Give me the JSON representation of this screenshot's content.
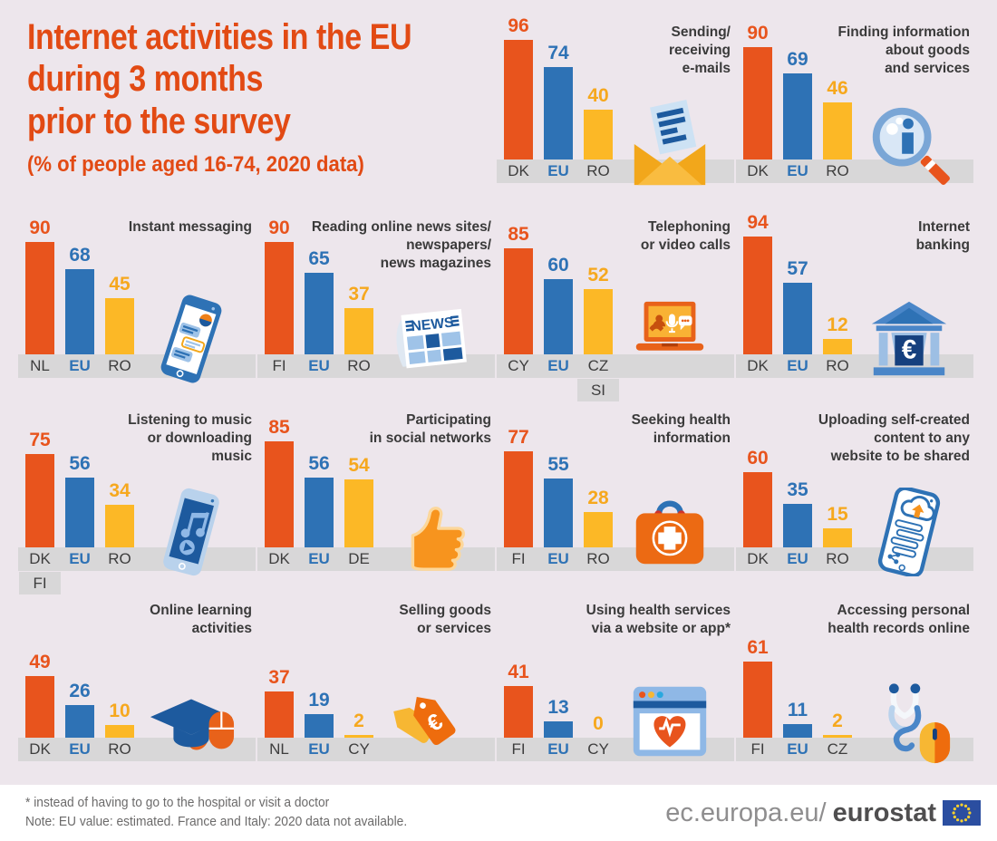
{
  "header": {
    "title": "Internet activities in the EU\nduring 3 months\nprior to the survey",
    "subtitle": "(% of people aged 16-74, 2020 data)"
  },
  "colors": {
    "background": "#ede6ec",
    "title_accent": "#e24a14",
    "bar_orange": "#e8541d",
    "bar_blue": "#2e72b5",
    "bar_yellow": "#fcb826",
    "yellow_value_label": "#f6a81e",
    "axis_strip_gray": "#d8d7d8",
    "chart_title_text": "#3a3a3a",
    "eu_flag_blue": "#2b4ea0",
    "eu_flag_stars": "#f8d12e"
  },
  "chart_data": [
    {
      "type": "bar",
      "title": "Sending/\nreceiving\ne-mails",
      "icon": "email-icon",
      "ylim": [
        0,
        100
      ],
      "bars": [
        {
          "label": "DK",
          "value": 96,
          "color": "orange"
        },
        {
          "label": "EU",
          "value": 74,
          "color": "blue"
        },
        {
          "label": "RO",
          "value": 40,
          "color": "yellow"
        }
      ]
    },
    {
      "type": "bar",
      "title": "Finding information\nabout goods\nand services",
      "icon": "magnifier-info-icon",
      "ylim": [
        0,
        100
      ],
      "bars": [
        {
          "label": "DK",
          "value": 90,
          "color": "orange"
        },
        {
          "label": "EU",
          "value": 69,
          "color": "blue"
        },
        {
          "label": "RO",
          "value": 46,
          "color": "yellow"
        }
      ]
    },
    {
      "type": "bar",
      "title": "Instant messaging",
      "icon": "smartphone-chat-icon",
      "ylim": [
        0,
        100
      ],
      "bars": [
        {
          "label": "NL",
          "value": 90,
          "color": "orange"
        },
        {
          "label": "EU",
          "value": 68,
          "color": "blue"
        },
        {
          "label": "RO",
          "value": 45,
          "color": "yellow"
        }
      ]
    },
    {
      "type": "bar",
      "title": "Reading online news sites/\nnewspapers/\nnews magazines",
      "icon": "newspaper-icon",
      "ylim": [
        0,
        100
      ],
      "bars": [
        {
          "label": "FI",
          "value": 90,
          "color": "orange"
        },
        {
          "label": "EU",
          "value": 65,
          "color": "blue"
        },
        {
          "label": "RO",
          "value": 37,
          "color": "yellow"
        }
      ]
    },
    {
      "type": "bar",
      "title": "Telephoning\nor video calls",
      "icon": "laptop-call-icon",
      "ylim": [
        0,
        100
      ],
      "bars": [
        {
          "label": "CY",
          "value": 85,
          "color": "orange"
        },
        {
          "label": "EU",
          "value": 60,
          "color": "blue"
        },
        {
          "label": "CZ",
          "value": 52,
          "color": "yellow",
          "sub": "SI"
        }
      ]
    },
    {
      "type": "bar",
      "title": "Internet\nbanking",
      "icon": "bank-icon",
      "ylim": [
        0,
        100
      ],
      "bars": [
        {
          "label": "DK",
          "value": 94,
          "color": "orange"
        },
        {
          "label": "EU",
          "value": 57,
          "color": "blue"
        },
        {
          "label": "RO",
          "value": 12,
          "color": "yellow"
        }
      ]
    },
    {
      "type": "bar",
      "title": "Listening to music\nor downloading\nmusic",
      "icon": "smartphone-music-icon",
      "ylim": [
        0,
        100
      ],
      "bars": [
        {
          "label": "DK",
          "value": 75,
          "color": "orange",
          "sub": "FI"
        },
        {
          "label": "EU",
          "value": 56,
          "color": "blue"
        },
        {
          "label": "RO",
          "value": 34,
          "color": "yellow"
        }
      ]
    },
    {
      "type": "bar",
      "title": "Participating\nin social networks",
      "icon": "thumbs-up-icon",
      "ylim": [
        0,
        100
      ],
      "bars": [
        {
          "label": "DK",
          "value": 85,
          "color": "orange"
        },
        {
          "label": "EU",
          "value": 56,
          "color": "blue"
        },
        {
          "label": "DE",
          "value": 54,
          "color": "yellow"
        }
      ]
    },
    {
      "type": "bar",
      "title": "Seeking health\ninformation",
      "icon": "first-aid-kit-icon",
      "ylim": [
        0,
        100
      ],
      "bars": [
        {
          "label": "FI",
          "value": 77,
          "color": "orange"
        },
        {
          "label": "EU",
          "value": 55,
          "color": "blue"
        },
        {
          "label": "RO",
          "value": 28,
          "color": "yellow"
        }
      ]
    },
    {
      "type": "bar",
      "title": "Uploading self-created\ncontent to any\nwebsite to be shared",
      "icon": "smartphone-upload-icon",
      "ylim": [
        0,
        100
      ],
      "bars": [
        {
          "label": "DK",
          "value": 60,
          "color": "orange"
        },
        {
          "label": "EU",
          "value": 35,
          "color": "blue"
        },
        {
          "label": "RO",
          "value": 15,
          "color": "yellow"
        }
      ]
    },
    {
      "type": "bar",
      "title": "Online learning\nactivities",
      "icon": "graduation-cap-mouse-icon",
      "ylim": [
        0,
        100
      ],
      "bars": [
        {
          "label": "DK",
          "value": 49,
          "color": "orange"
        },
        {
          "label": "EU",
          "value": 26,
          "color": "blue"
        },
        {
          "label": "RO",
          "value": 10,
          "color": "yellow"
        }
      ]
    },
    {
      "type": "bar",
      "title": "Selling goods\nor services",
      "icon": "price-tags-icon",
      "ylim": [
        0,
        100
      ],
      "bars": [
        {
          "label": "NL",
          "value": 37,
          "color": "orange"
        },
        {
          "label": "EU",
          "value": 19,
          "color": "blue"
        },
        {
          "label": "CY",
          "value": 2,
          "color": "yellow"
        }
      ]
    },
    {
      "type": "bar",
      "title": "Using health services\nvia a website or app*",
      "icon": "browser-heart-icon",
      "ylim": [
        0,
        100
      ],
      "bars": [
        {
          "label": "FI",
          "value": 41,
          "color": "orange"
        },
        {
          "label": "EU",
          "value": 13,
          "color": "blue"
        },
        {
          "label": "CY",
          "value": 0,
          "color": "yellow"
        }
      ]
    },
    {
      "type": "bar",
      "title": "Accessing personal\nhealth records online",
      "icon": "stethoscope-mouse-icon",
      "ylim": [
        0,
        100
      ],
      "bars": [
        {
          "label": "FI",
          "value": 61,
          "color": "orange"
        },
        {
          "label": "EU",
          "value": 11,
          "color": "blue"
        },
        {
          "label": "CZ",
          "value": 2,
          "color": "yellow"
        }
      ]
    }
  ],
  "footer": {
    "footnote1": "* instead of having to go to the hospital or visit a doctor",
    "footnote2": "Note: EU value: estimated. France and Italy: 2020 data not available.",
    "site_regular": "ec.europa.eu/",
    "site_bold": "eurostat"
  }
}
